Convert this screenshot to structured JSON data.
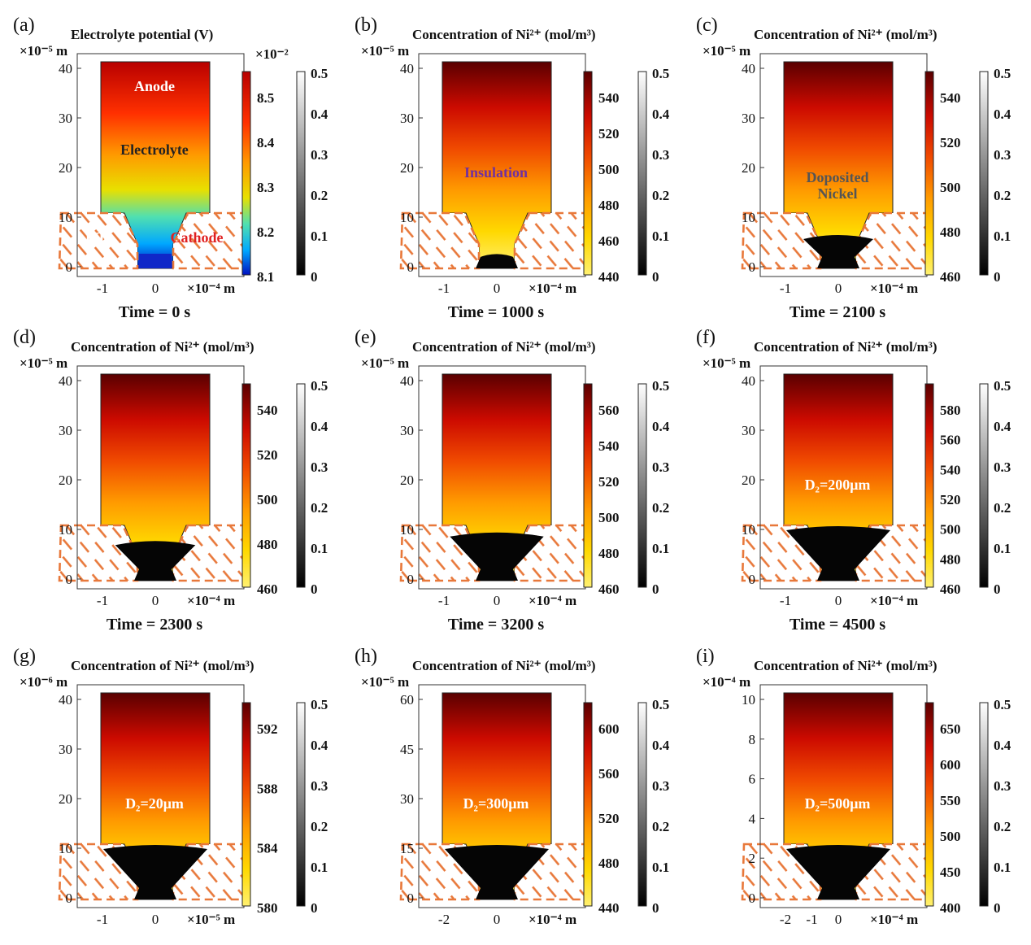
{
  "chart_data": [
    {
      "type": "heatmap",
      "label": "(a)",
      "title_text": "Electrolyte potential (V)",
      "y_scale_label": "×10⁻⁵ m",
      "x_scale_label": "×10⁻⁴ m",
      "yticks": [
        "40",
        "30",
        "20",
        "10",
        "0"
      ],
      "xticks": [
        "-1",
        "0"
      ],
      "color_scale_label": "×10⁻²",
      "color_ticks": [
        "8.5",
        "8.4",
        "8.3",
        "8.2",
        "8.1"
      ],
      "gray_ticks": [
        "0.5",
        "0.4",
        "0.3",
        "0.2",
        "0.1",
        "0"
      ],
      "time_label": "Time = 0 s",
      "annotations": [
        "Anode",
        "Electrolyte",
        "HTL",
        "Cathode"
      ],
      "colormap": "jet",
      "deposit_level": 0
    },
    {
      "type": "heatmap",
      "label": "(b)",
      "title_text": "Concentration of Ni²⁺ (mol/m³)",
      "y_scale_label": "×10⁻⁵ m",
      "x_scale_label": "×10⁻⁴ m",
      "yticks": [
        "40",
        "30",
        "20",
        "10",
        "0"
      ],
      "xticks": [
        "-1",
        "0"
      ],
      "color_ticks": [
        "540",
        "520",
        "500",
        "480",
        "460",
        "440"
      ],
      "gray_ticks": [
        "0.5",
        "0.4",
        "0.3",
        "0.2",
        "0.1",
        "0"
      ],
      "time_label": "Time = 1000 s",
      "annotations": [
        "Insulation"
      ],
      "colormap": "hot",
      "deposit_level": 0.05
    },
    {
      "type": "heatmap",
      "label": "(c)",
      "title_text": "Concentration of Ni²⁺ (mol/m³)",
      "y_scale_label": "×10⁻⁵ m",
      "x_scale_label": "×10⁻⁴ m",
      "yticks": [
        "40",
        "30",
        "20",
        "10",
        "0"
      ],
      "xticks": [
        "-1",
        "0"
      ],
      "color_ticks": [
        "540",
        "520",
        "500",
        "480",
        "460"
      ],
      "gray_ticks": [
        "0.5",
        "0.4",
        "0.3",
        "0.2",
        "0.1",
        "0"
      ],
      "time_label": "Time = 2100 s",
      "annotations": [
        "Doposited",
        "Nickel"
      ],
      "colormap": "hot",
      "deposit_level": 0.5
    },
    {
      "type": "heatmap",
      "label": "(d)",
      "title_text": "Concentration of Ni²⁺ (mol/m³)",
      "y_scale_label": "×10⁻⁵ m",
      "x_scale_label": "×10⁻⁴ m",
      "yticks": [
        "40",
        "30",
        "20",
        "10",
        "0"
      ],
      "xticks": [
        "-1",
        "0"
      ],
      "color_ticks": [
        "540",
        "520",
        "500",
        "480",
        "460"
      ],
      "gray_ticks": [
        "0.5",
        "0.4",
        "0.3",
        "0.2",
        "0.1",
        "0"
      ],
      "time_label": "Time = 2300 s",
      "annotations": [],
      "colormap": "hot",
      "deposit_level": 0.65
    },
    {
      "type": "heatmap",
      "label": "(e)",
      "title_text": "Concentration of Ni²⁺ (mol/m³)",
      "y_scale_label": "×10⁻⁵ m",
      "x_scale_label": "×10⁻⁴ m",
      "yticks": [
        "40",
        "30",
        "20",
        "10",
        "0"
      ],
      "xticks": [
        "-1",
        "0"
      ],
      "color_ticks": [
        "560",
        "540",
        "520",
        "500",
        "480",
        "460"
      ],
      "gray_ticks": [
        "0.5",
        "0.4",
        "0.3",
        "0.2",
        "0.1",
        "0"
      ],
      "time_label": "Time = 3200 s",
      "annotations": [],
      "colormap": "hot",
      "deposit_level": 0.85
    },
    {
      "type": "heatmap",
      "label": "(f)",
      "title_text": "Concentration of Ni²⁺ (mol/m³)",
      "y_scale_label": "×10⁻⁵ m",
      "x_scale_label": "×10⁻⁴ m",
      "yticks": [
        "40",
        "30",
        "20",
        "10",
        "0"
      ],
      "xticks": [
        "-1",
        "0"
      ],
      "color_ticks": [
        "580",
        "560",
        "540",
        "520",
        "500",
        "480",
        "460"
      ],
      "gray_ticks": [
        "0.5",
        "0.4",
        "0.3",
        "0.2",
        "0.1",
        "0"
      ],
      "time_label": "Time = 4500 s",
      "annotations": [
        "D₂=200μm"
      ],
      "colormap": "hot",
      "deposit_level": 1
    },
    {
      "type": "heatmap",
      "label": "(g)",
      "title_text": "Concentration of Ni²⁺ (mol/m³)",
      "y_scale_label": "×10⁻⁶ m",
      "x_scale_label": "×10⁻⁵ m",
      "yticks": [
        "40",
        "30",
        "20",
        "10",
        "0"
      ],
      "xticks": [
        "-1",
        "0"
      ],
      "color_ticks": [
        "592",
        "588",
        "584",
        "580"
      ],
      "gray_ticks": [
        "0.5",
        "0.4",
        "0.3",
        "0.2",
        "0.1",
        "0"
      ],
      "time_label": "",
      "annotations": [
        "D₂=20μm"
      ],
      "colormap": "hot",
      "deposit_level": 1
    },
    {
      "type": "heatmap",
      "label": "(h)",
      "title_text": "Concentration of Ni²⁺ (mol/m³)",
      "y_scale_label": "×10⁻⁵ m",
      "x_scale_label": "×10⁻⁴ m",
      "yticks": [
        "60",
        "45",
        "30",
        "15",
        "0"
      ],
      "xticks": [
        "-2",
        "0"
      ],
      "color_ticks": [
        "600",
        "560",
        "520",
        "480",
        "440"
      ],
      "gray_ticks": [
        "0.5",
        "0.4",
        "0.3",
        "0.2",
        "0.1",
        "0"
      ],
      "time_label": "",
      "annotations": [
        "D₂=300μm"
      ],
      "colormap": "hot",
      "deposit_level": 1
    },
    {
      "type": "heatmap",
      "label": "(i)",
      "title_text": "Concentration of Ni²⁺ (mol/m³)",
      "y_scale_label": "×10⁻⁴ m",
      "x_scale_label": "×10⁻⁴ m",
      "yticks": [
        "10",
        "8",
        "6",
        "4",
        "2",
        "0"
      ],
      "xticks": [
        "-2",
        "-1",
        "0"
      ],
      "color_ticks": [
        "650",
        "600",
        "550",
        "500",
        "450",
        "400"
      ],
      "gray_ticks": [
        "0.5",
        "0.4",
        "0.3",
        "0.2",
        "0.1",
        "0"
      ],
      "time_label": "",
      "annotations": [
        "D₂=500μm"
      ],
      "colormap": "hot",
      "deposit_level": 1
    }
  ]
}
